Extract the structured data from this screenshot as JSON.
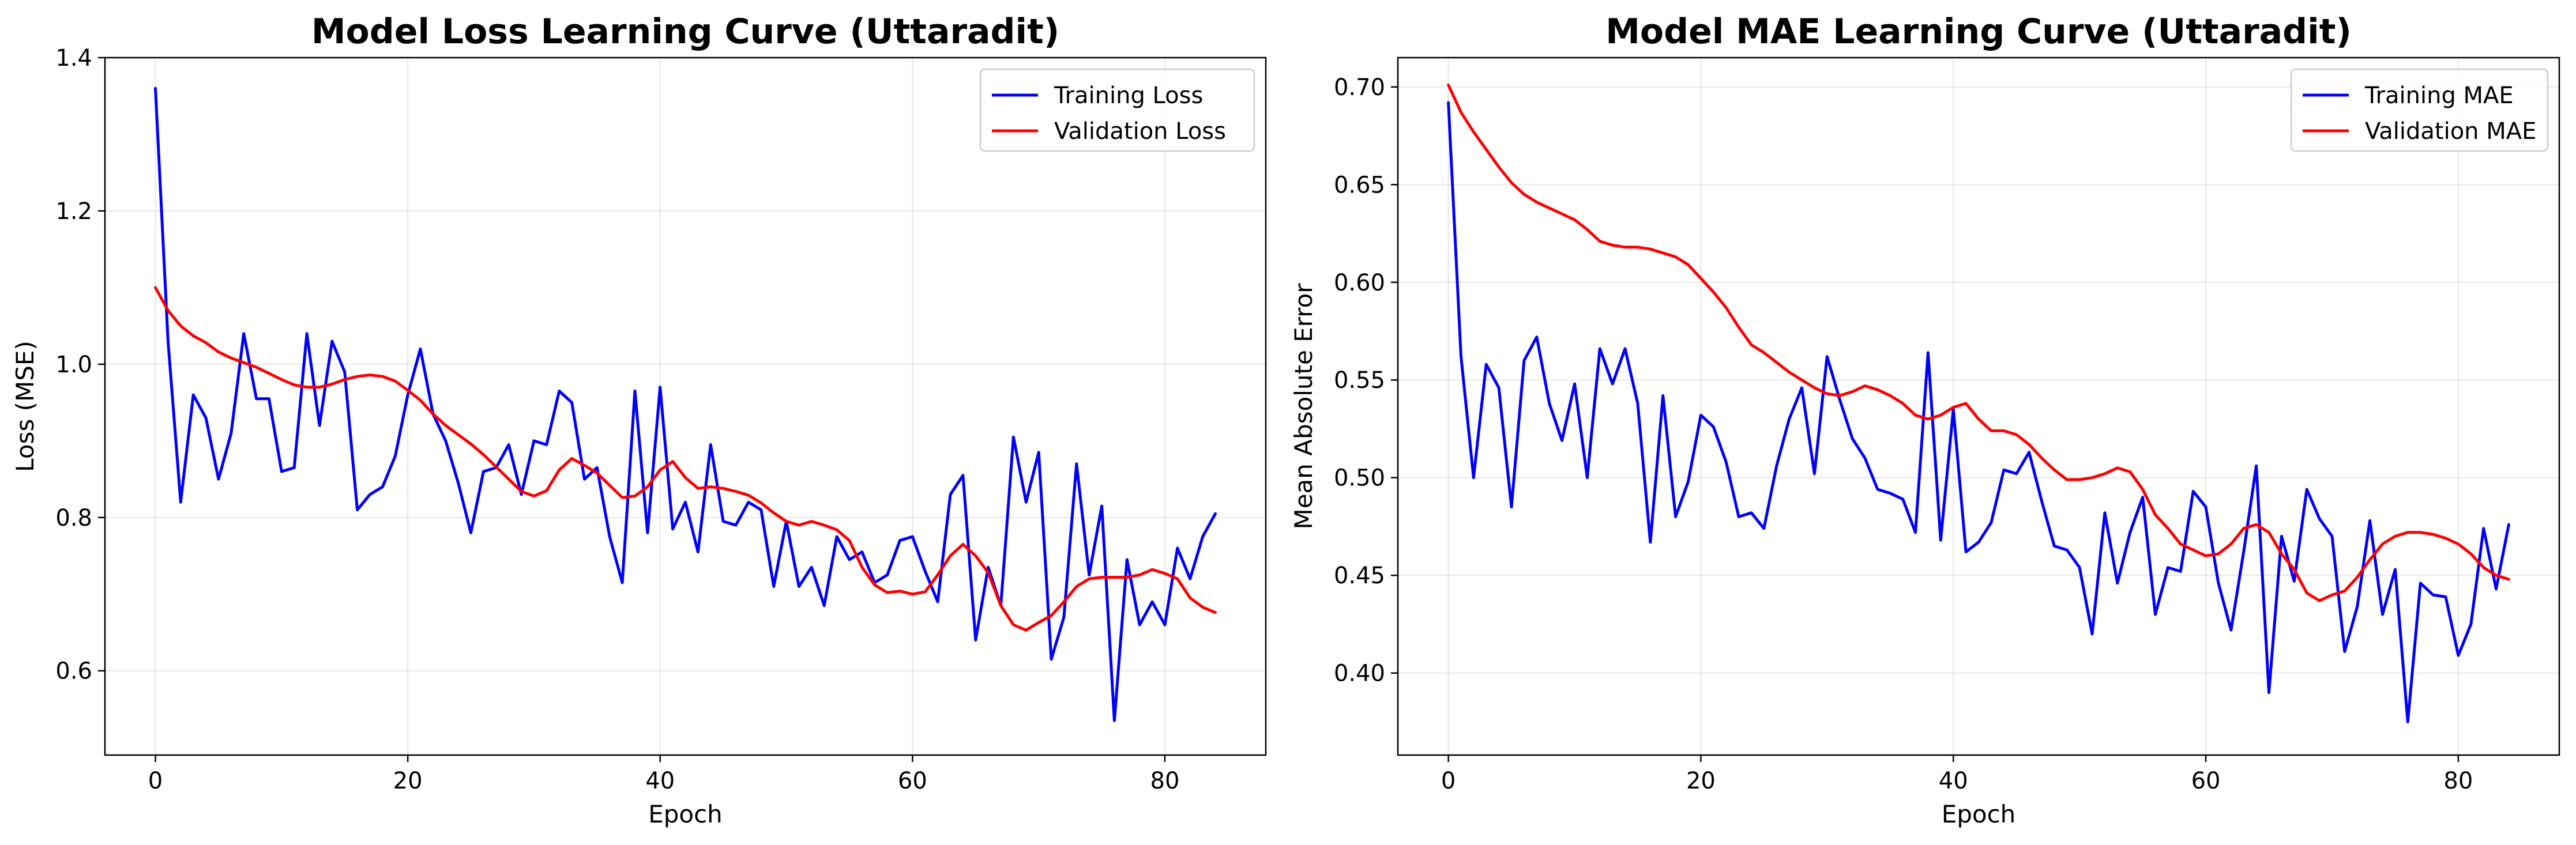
{
  "chart_data": [
    {
      "type": "line",
      "title": "Model Loss Learning Curve (Uttaradit)",
      "xlabel": "Epoch",
      "ylabel": "Loss (MSE)",
      "xlim": [
        -4,
        88
      ],
      "ylim": [
        0.49,
        1.4
      ],
      "xticks": [
        0,
        20,
        40,
        60,
        80
      ],
      "yticks": [
        0.6,
        0.8,
        1.0,
        1.2,
        1.4
      ],
      "ytick_labels": [
        "0.6",
        "0.8",
        "1.0",
        "1.2",
        "1.4"
      ],
      "grid": true,
      "legend_position": "upper right",
      "series": [
        {
          "name": "Training Loss",
          "color": "#0000ff",
          "values": [
            1.36,
            1.03,
            0.82,
            0.96,
            0.93,
            0.85,
            0.91,
            1.04,
            0.955,
            0.955,
            0.86,
            0.865,
            1.04,
            0.92,
            1.03,
            0.99,
            0.81,
            0.83,
            0.84,
            0.88,
            0.96,
            1.02,
            0.935,
            0.9,
            0.845,
            0.78,
            0.86,
            0.865,
            0.895,
            0.83,
            0.9,
            0.895,
            0.965,
            0.95,
            0.85,
            0.865,
            0.775,
            0.715,
            0.965,
            0.78,
            0.97,
            0.785,
            0.82,
            0.755,
            0.895,
            0.795,
            0.79,
            0.82,
            0.81,
            0.71,
            0.795,
            0.71,
            0.735,
            0.685,
            0.775,
            0.745,
            0.755,
            0.715,
            0.725,
            0.77,
            0.775,
            0.73,
            0.69,
            0.83,
            0.855,
            0.64,
            0.735,
            0.685,
            0.905,
            0.82,
            0.885,
            0.615,
            0.67,
            0.87,
            0.725,
            0.815,
            0.535,
            0.745,
            0.66,
            0.69,
            0.66,
            0.76,
            0.72,
            0.775,
            0.805
          ]
        },
        {
          "name": "Validation Loss",
          "color": "#ff0000",
          "values": [
            1.1,
            1.07,
            1.05,
            1.037,
            1.028,
            1.016,
            1.008,
            1.002,
            0.996,
            0.988,
            0.98,
            0.973,
            0.97,
            0.97,
            0.974,
            0.98,
            0.984,
            0.986,
            0.984,
            0.978,
            0.966,
            0.953,
            0.935,
            0.92,
            0.908,
            0.896,
            0.882,
            0.866,
            0.85,
            0.834,
            0.828,
            0.835,
            0.862,
            0.877,
            0.868,
            0.858,
            0.842,
            0.826,
            0.828,
            0.84,
            0.862,
            0.873,
            0.852,
            0.838,
            0.84,
            0.838,
            0.834,
            0.829,
            0.819,
            0.806,
            0.795,
            0.79,
            0.795,
            0.79,
            0.784,
            0.77,
            0.735,
            0.712,
            0.702,
            0.704,
            0.7,
            0.703,
            0.725,
            0.75,
            0.765,
            0.75,
            0.728,
            0.685,
            0.66,
            0.653,
            0.663,
            0.672,
            0.69,
            0.71,
            0.72,
            0.722,
            0.722,
            0.722,
            0.725,
            0.732,
            0.727,
            0.72,
            0.695,
            0.683,
            0.676
          ]
        }
      ]
    },
    {
      "type": "line",
      "title": "Model MAE Learning Curve (Uttaradit)",
      "xlabel": "Epoch",
      "ylabel": "Mean Absolute Error",
      "xlim": [
        -4,
        88
      ],
      "ylim": [
        0.358,
        0.715
      ],
      "xticks": [
        0,
        20,
        40,
        60,
        80
      ],
      "yticks": [
        0.4,
        0.45,
        0.5,
        0.55,
        0.6,
        0.65,
        0.7
      ],
      "ytick_labels": [
        "0.40",
        "0.45",
        "0.50",
        "0.55",
        "0.60",
        "0.65",
        "0.70"
      ],
      "grid": true,
      "legend_position": "upper right",
      "series": [
        {
          "name": "Training MAE",
          "color": "#0000ff",
          "values": [
            0.692,
            0.562,
            0.5,
            0.558,
            0.546,
            0.485,
            0.56,
            0.572,
            0.538,
            0.519,
            0.548,
            0.5,
            0.566,
            0.548,
            0.566,
            0.538,
            0.467,
            0.542,
            0.48,
            0.498,
            0.532,
            0.526,
            0.508,
            0.48,
            0.482,
            0.474,
            0.506,
            0.53,
            0.546,
            0.502,
            0.562,
            0.54,
            0.52,
            0.51,
            0.494,
            0.492,
            0.489,
            0.472,
            0.564,
            0.468,
            0.535,
            0.462,
            0.467,
            0.477,
            0.504,
            0.502,
            0.513,
            0.488,
            0.465,
            0.463,
            0.454,
            0.42,
            0.482,
            0.446,
            0.472,
            0.49,
            0.43,
            0.454,
            0.452,
            0.493,
            0.485,
            0.446,
            0.422,
            0.462,
            0.506,
            0.39,
            0.47,
            0.447,
            0.494,
            0.479,
            0.47,
            0.411,
            0.434,
            0.478,
            0.43,
            0.453,
            0.375,
            0.446,
            0.44,
            0.439,
            0.409,
            0.425,
            0.474,
            0.443,
            0.476
          ]
        },
        {
          "name": "Validation MAE",
          "color": "#ff0000",
          "values": [
            0.701,
            0.687,
            0.677,
            0.668,
            0.659,
            0.651,
            0.645,
            0.641,
            0.638,
            0.635,
            0.632,
            0.627,
            0.621,
            0.619,
            0.618,
            0.618,
            0.617,
            0.615,
            0.613,
            0.609,
            0.602,
            0.595,
            0.587,
            0.577,
            0.568,
            0.564,
            0.559,
            0.554,
            0.55,
            0.546,
            0.543,
            0.542,
            0.544,
            0.547,
            0.545,
            0.542,
            0.538,
            0.532,
            0.53,
            0.532,
            0.536,
            0.538,
            0.53,
            0.524,
            0.524,
            0.522,
            0.517,
            0.51,
            0.504,
            0.499,
            0.499,
            0.5,
            0.502,
            0.505,
            0.503,
            0.494,
            0.481,
            0.474,
            0.466,
            0.463,
            0.46,
            0.461,
            0.466,
            0.474,
            0.476,
            0.472,
            0.461,
            0.453,
            0.441,
            0.437,
            0.44,
            0.442,
            0.449,
            0.458,
            0.466,
            0.47,
            0.472,
            0.472,
            0.471,
            0.469,
            0.466,
            0.461,
            0.454,
            0.45,
            0.448
          ]
        }
      ]
    }
  ]
}
